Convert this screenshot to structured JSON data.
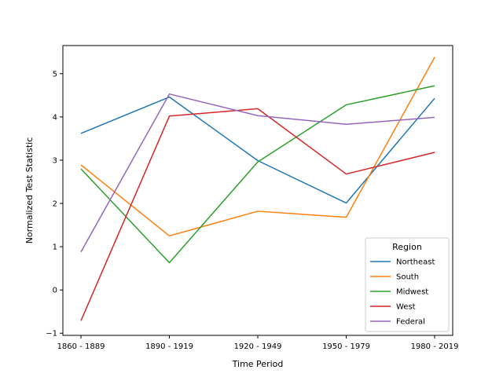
{
  "chart_data": {
    "type": "line",
    "title": "",
    "xlabel": "Time Period",
    "ylabel": "Normalized Test Statistic",
    "categories": [
      "1860 - 1889",
      "1890 - 1919",
      "1920 - 1949",
      "1950 - 1979",
      "1980 - 2019"
    ],
    "ylim": [
      -1.05,
      5.65
    ],
    "yticks": [
      -1,
      0,
      1,
      2,
      3,
      4,
      5
    ],
    "grid": false,
    "legend": {
      "title": "Region",
      "placement": "lower-right"
    },
    "series": [
      {
        "name": "Northeast",
        "color": "#1f77b4",
        "values": [
          3.62,
          4.46,
          2.99,
          2.01,
          4.43
        ]
      },
      {
        "name": "South",
        "color": "#ff7f0e",
        "values": [
          2.89,
          1.25,
          1.82,
          1.68,
          5.38
        ]
      },
      {
        "name": "Midwest",
        "color": "#2ca02c",
        "values": [
          2.8,
          0.63,
          2.96,
          4.28,
          4.72
        ]
      },
      {
        "name": "West",
        "color": "#d62728",
        "values": [
          -0.71,
          4.02,
          4.19,
          2.68,
          3.18
        ]
      },
      {
        "name": "Federal",
        "color": "#9467bd",
        "values": [
          0.88,
          4.53,
          4.03,
          3.83,
          3.99
        ]
      }
    ]
  }
}
